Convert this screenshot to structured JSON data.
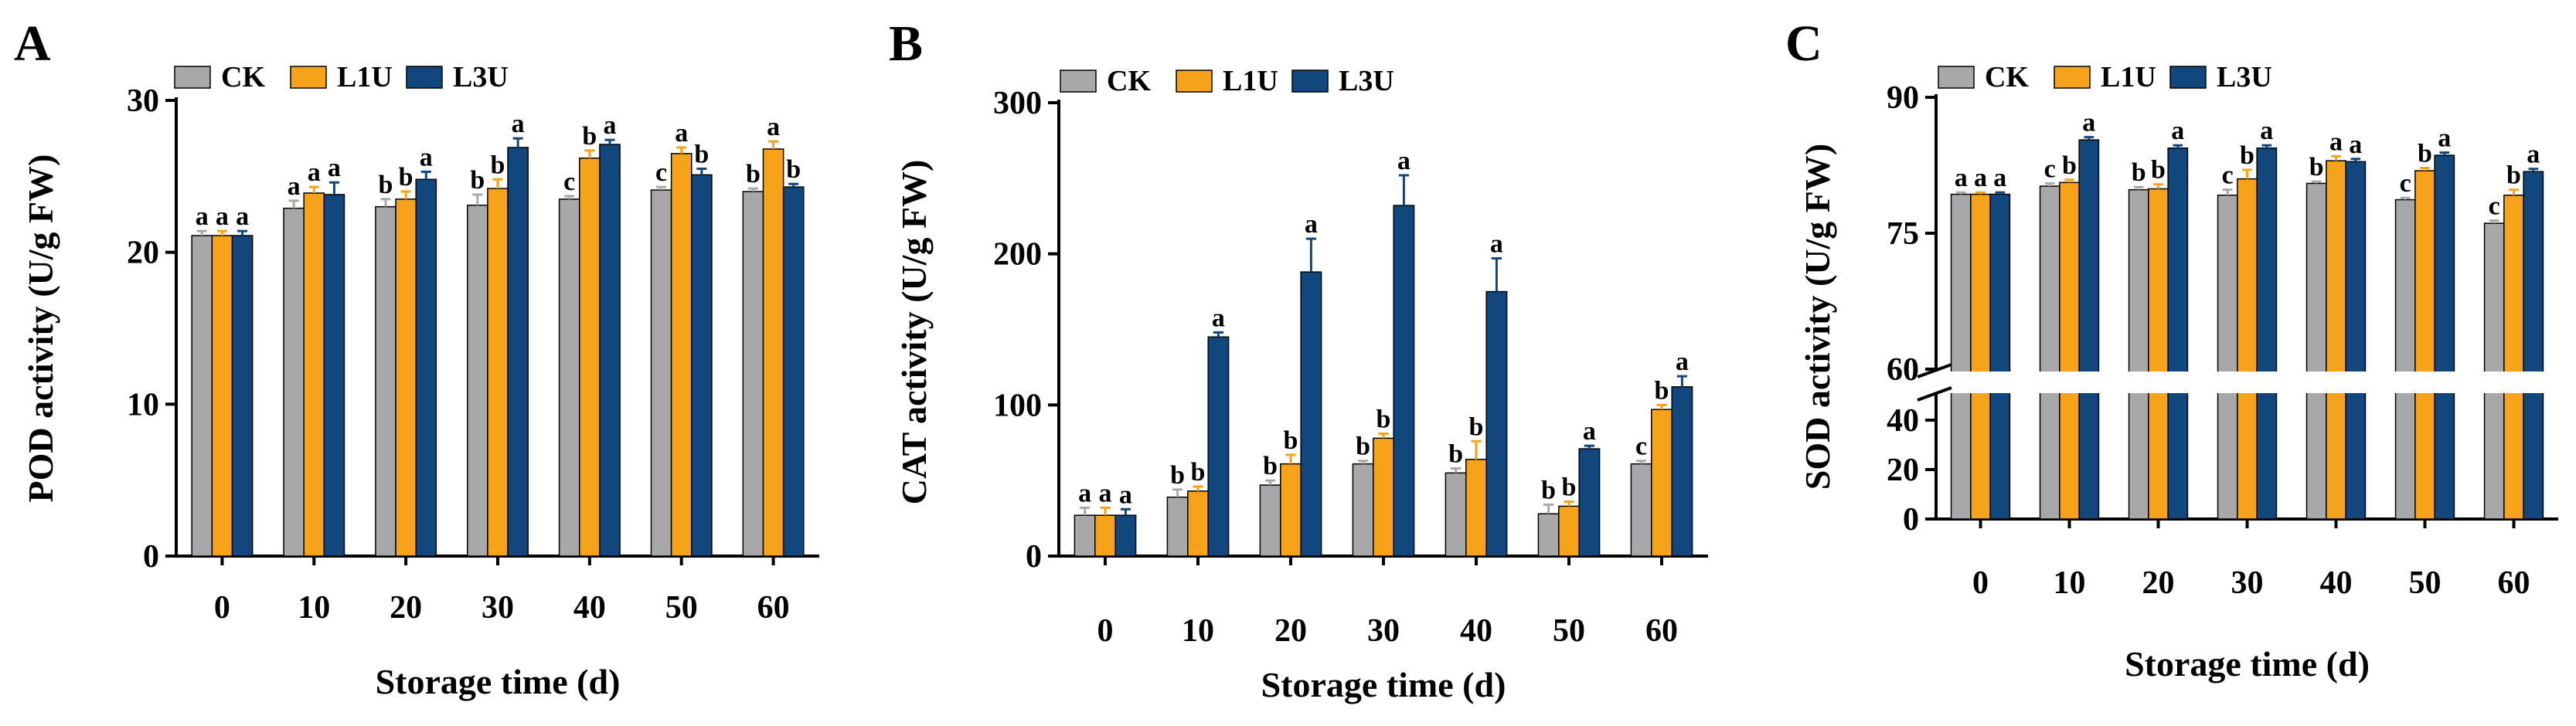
{
  "figure": {
    "colors": {
      "CK": "#A8A8AB",
      "L1U": "#F7A21B",
      "L3U": "#12477E"
    }
  },
  "chart_data": [
    {
      "panel": "A",
      "type": "bar",
      "xlabel": "Storage time (d)",
      "ylabel": "POD activity (U/g FW)",
      "ylim": [
        0,
        30
      ],
      "yticks": [
        0,
        10,
        20,
        30
      ],
      "categories": [
        "0",
        "10",
        "20",
        "30",
        "40",
        "50",
        "60"
      ],
      "legend": [
        "CK",
        "L1U",
        "L3U"
      ],
      "series": [
        {
          "name": "CK",
          "values": [
            21.1,
            22.9,
            23.0,
            23.1,
            23.5,
            24.1,
            24.0
          ],
          "errors": [
            0.3,
            0.5,
            0.5,
            0.7,
            0.2,
            0.2,
            0.2
          ],
          "letters": [
            "a",
            "a",
            "b",
            "b",
            "c",
            "c",
            "b"
          ]
        },
        {
          "name": "L1U",
          "values": [
            21.1,
            23.9,
            23.5,
            24.2,
            26.2,
            26.5,
            26.8
          ],
          "errors": [
            0.3,
            0.4,
            0.5,
            0.6,
            0.5,
            0.4,
            0.5
          ],
          "letters": [
            "a",
            "a",
            "b",
            "b",
            "b",
            "a",
            "a"
          ]
        },
        {
          "name": "L3U",
          "values": [
            21.1,
            23.8,
            24.8,
            26.9,
            27.1,
            25.1,
            24.3
          ],
          "errors": [
            0.3,
            0.8,
            0.5,
            0.6,
            0.3,
            0.4,
            0.2
          ],
          "letters": [
            "a",
            "a",
            "a",
            "a",
            "a",
            "b",
            "b"
          ]
        }
      ]
    },
    {
      "panel": "B",
      "type": "bar",
      "xlabel": "Storage time (d)",
      "ylabel": "CAT activity (U/g FW)",
      "ylim": [
        0,
        300
      ],
      "yticks": [
        0,
        100,
        200,
        300
      ],
      "categories": [
        "0",
        "10",
        "20",
        "30",
        "40",
        "50",
        "60"
      ],
      "legend": [
        "CK",
        "L1U",
        "L3U"
      ],
      "series": [
        {
          "name": "CK",
          "values": [
            27,
            39,
            47,
            61,
            55,
            28,
            61
          ],
          "errors": [
            5,
            5,
            3,
            2,
            3,
            6,
            2
          ],
          "letters": [
            "a",
            "b",
            "b",
            "b",
            "b",
            "b",
            "c"
          ]
        },
        {
          "name": "L1U",
          "values": [
            27,
            43,
            61,
            78,
            64,
            33,
            97
          ],
          "errors": [
            5,
            3,
            6,
            3,
            12,
            3,
            3
          ],
          "letters": [
            "a",
            "b",
            "b",
            "b",
            "b",
            "b",
            "b"
          ]
        },
        {
          "name": "L3U",
          "values": [
            27,
            145,
            188,
            232,
            175,
            71,
            112
          ],
          "errors": [
            4,
            3,
            22,
            20,
            22,
            2,
            7
          ],
          "letters": [
            "a",
            "a",
            "a",
            "a",
            "a",
            "a",
            "a"
          ]
        }
      ]
    },
    {
      "panel": "C",
      "type": "bar",
      "xlabel": "Storage time (d)",
      "ylabel": "SOD activity (U/g FW)",
      "ylim": [
        0,
        90
      ],
      "axis_break": [
        50,
        60
      ],
      "yticks": [
        0,
        20,
        40,
        60,
        75,
        90
      ],
      "categories": [
        "0",
        "10",
        "20",
        "30",
        "40",
        "50",
        "60"
      ],
      "legend": [
        "CK",
        "L1U",
        "L3U"
      ],
      "series": [
        {
          "name": "CK",
          "values": [
            79.3,
            80.2,
            79.8,
            79.2,
            80.5,
            78.7,
            76.1
          ],
          "errors": [
            0.2,
            0.3,
            0.3,
            0.6,
            0.2,
            0.2,
            0.3
          ],
          "letters": [
            "a",
            "c",
            "b",
            "c",
            "b",
            "c",
            "c"
          ]
        },
        {
          "name": "L1U",
          "values": [
            79.3,
            80.6,
            79.9,
            81.0,
            83.0,
            81.9,
            79.2
          ],
          "errors": [
            0.2,
            0.3,
            0.5,
            1.0,
            0.5,
            0.3,
            0.6
          ],
          "letters": [
            "a",
            "b",
            "b",
            "b",
            "a",
            "b",
            "b"
          ]
        },
        {
          "name": "L3U",
          "values": [
            79.3,
            85.3,
            84.4,
            84.4,
            82.9,
            83.6,
            81.8
          ],
          "errors": [
            0.2,
            0.3,
            0.3,
            0.3,
            0.3,
            0.3,
            0.3
          ],
          "letters": [
            "a",
            "a",
            "a",
            "a",
            "a",
            "a",
            "a"
          ]
        }
      ]
    }
  ]
}
